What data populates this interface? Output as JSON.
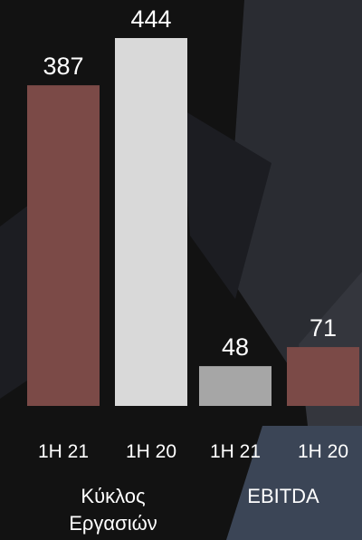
{
  "chart_data": {
    "type": "bar",
    "colors": {
      "1H 21": "#7b4a47",
      "1H 20": "#d9d9d9",
      "1H 21 EBITDA": "#a6a6a6",
      "1H 20 EBITDA": "#7b4a47"
    },
    "bars": [
      {
        "group": "Κύκλος Εργασιών",
        "label": "1H 21",
        "value": 387,
        "color": "#7b4a47"
      },
      {
        "group": "Κύκλος Εργασιών",
        "label": "1H 20",
        "value": 444,
        "color": "#d9d9d9"
      },
      {
        "group": "EBITDA",
        "label": "1H 21",
        "value": 48,
        "color": "#a6a6a6"
      },
      {
        "group": "EBITDA",
        "label": "1H 20",
        "value": 71,
        "color": "#7b4a47"
      }
    ],
    "groups": [
      {
        "label_lines": [
          "Κύκλος",
          "Εργασιών"
        ]
      },
      {
        "label_lines": [
          "EBITDA"
        ]
      }
    ],
    "ylim": [
      0,
      444
    ],
    "grid": false,
    "legend": "none"
  }
}
